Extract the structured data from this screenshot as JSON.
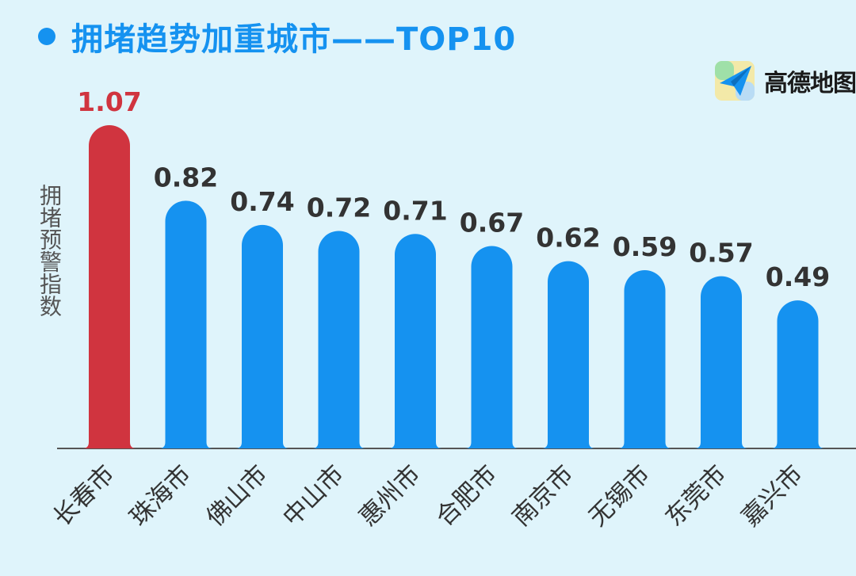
{
  "header": {
    "title": "拥堵趋势加重城市——TOP10"
  },
  "logo": {
    "text": "高德地图",
    "icon": "amap-plane-icon"
  },
  "colors": {
    "background": "#dff4fb",
    "accent": "#1592f0",
    "highlight": "#d0343f",
    "bar": "#1592f0",
    "axis": "#555555"
  },
  "chart_data": {
    "type": "bar",
    "title": "拥堵趋势加重城市——TOP10",
    "xlabel": "",
    "ylabel": "拥堵预警指数",
    "categories": [
      "长春市",
      "珠海市",
      "佛山市",
      "中山市",
      "惠州市",
      "合肥市",
      "南京市",
      "无锡市",
      "东莞市",
      "嘉兴市"
    ],
    "values": [
      1.07,
      0.82,
      0.74,
      0.72,
      0.71,
      0.67,
      0.62,
      0.59,
      0.57,
      0.49
    ],
    "highlight_index": 0,
    "ylim": [
      0,
      1.07
    ],
    "grid": false,
    "data_labels": true
  }
}
